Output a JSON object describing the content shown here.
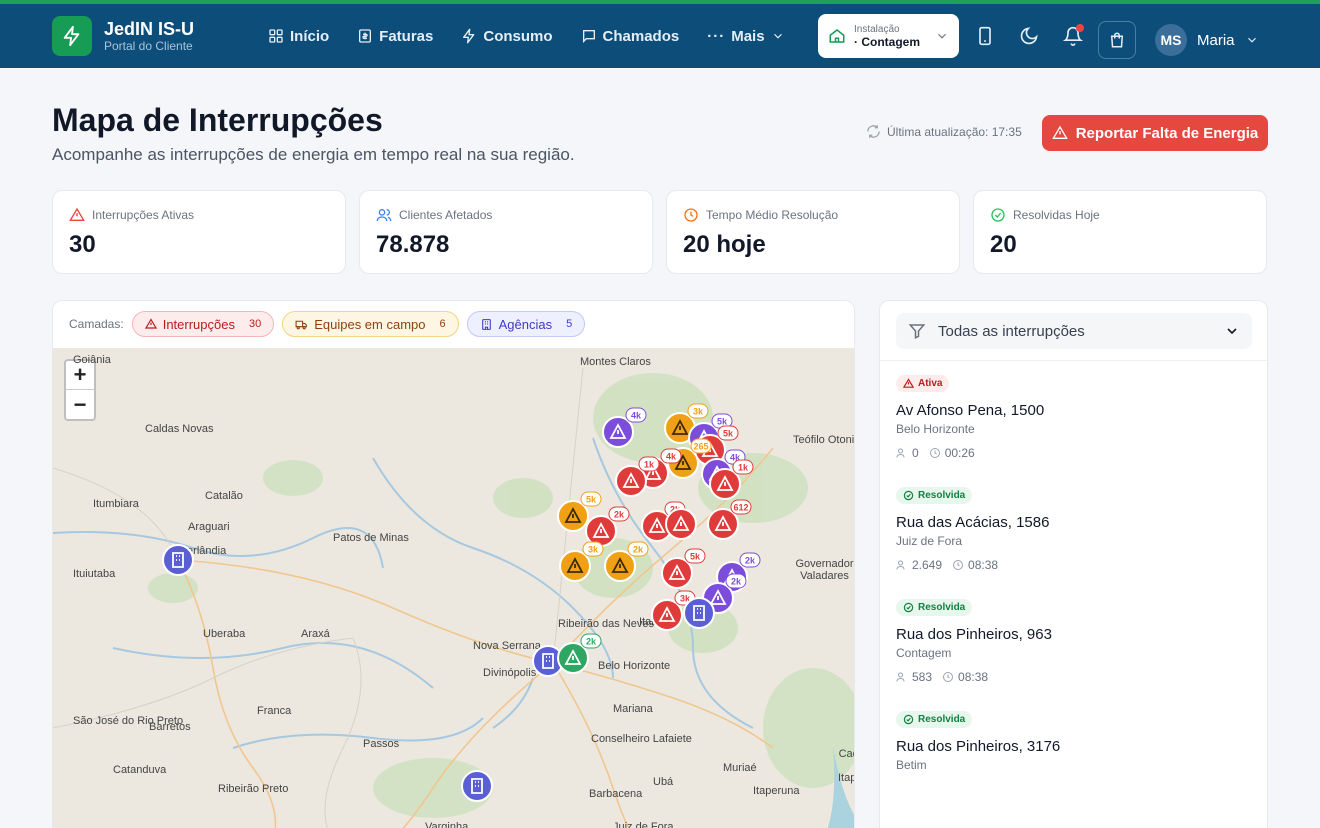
{
  "brand": {
    "title": "JedIN IS-U",
    "subtitle": "Portal do Cliente"
  },
  "nav": [
    {
      "label": "Início",
      "icon": "grid-icon"
    },
    {
      "label": "Faturas",
      "icon": "invoice-icon"
    },
    {
      "label": "Consumo",
      "icon": "bolt-icon"
    },
    {
      "label": "Chamados",
      "icon": "chat-icon"
    },
    {
      "label": "Mais",
      "icon": "more-icon"
    }
  ],
  "installation": {
    "label": "Instalação",
    "value": "· Contagem"
  },
  "user": {
    "initials": "MS",
    "name": "Maria"
  },
  "page": {
    "title": "Mapa de Interrupções",
    "subtitle": "Acompanhe as interrupções de energia em tempo real na sua região.",
    "last_update": "Última atualização: 17:35",
    "report_button": "Reportar Falta de Energia"
  },
  "stats": [
    {
      "label": "Interrupções Ativas",
      "value": "30",
      "icon": "alert-triangle-icon",
      "color": "#e5483f"
    },
    {
      "label": "Clientes Afetados",
      "value": "78.878",
      "icon": "users-icon",
      "color": "#3b82f6"
    },
    {
      "label": "Tempo Médio Resolução",
      "value": "20 hoje",
      "icon": "clock-icon",
      "color": "#f97316"
    },
    {
      "label": "Resolvidas Hoje",
      "value": "20",
      "icon": "check-circle-icon",
      "color": "#22c55e"
    }
  ],
  "layers": {
    "label": "Camadas:",
    "items": [
      {
        "label": "Interrupções",
        "count": "30"
      },
      {
        "label": "Equipes em campo",
        "count": "6"
      },
      {
        "label": "Agências",
        "count": "5"
      }
    ]
  },
  "map": {
    "cities": [
      "Goiânia",
      "Montes Claros",
      "Caldas Novas",
      "Teófilo Otoni",
      "Itumbiara",
      "Catalão",
      "Araguari",
      "Uberlândia",
      "Patos de Minas",
      "Ituiutaba",
      "Governador Valadares",
      "Uberaba",
      "Araxá",
      "Ribeirão das Neves",
      "Itabira",
      "Nova Serrana",
      "Belo Horizonte",
      "Divinópolis",
      "Mariana",
      "Franca",
      "São José do Rio Preto",
      "Barretos",
      "Passos",
      "Conselheiro Lafaiete",
      "Cachoeiro de Itapemirim",
      "Catanduva",
      "Muriaé",
      "Ribeirão Preto",
      "Ubá",
      "Itaperuna",
      "Barbacena",
      "Varginha",
      "Juiz de Fora"
    ],
    "clusters": [
      "4k",
      "3k",
      "5k",
      "5k",
      "265",
      "4k",
      "1k",
      "4k",
      "1k",
      "612",
      "5k",
      "2k",
      "2k",
      "2k",
      "3k",
      "5k",
      "2k",
      "3k",
      "2k",
      "2k",
      "4k"
    ]
  },
  "filter": {
    "label": "Todas as interrupções"
  },
  "incidents": [
    {
      "status": "Ativa",
      "address": "Av Afonso Pena, 1500",
      "city": "Belo Horizonte",
      "clients": "0",
      "time": "00:26"
    },
    {
      "status": "Resolvida",
      "address": "Rua das Acácias, 1586",
      "city": "Juiz de Fora",
      "clients": "2.649",
      "time": "08:38"
    },
    {
      "status": "Resolvida",
      "address": "Rua dos Pinheiros, 963",
      "city": "Contagem",
      "clients": "583",
      "time": "08:38"
    },
    {
      "status": "Resolvida",
      "address": "Rua dos Pinheiros, 3176",
      "city": "Betim",
      "clients": "",
      "time": ""
    }
  ]
}
